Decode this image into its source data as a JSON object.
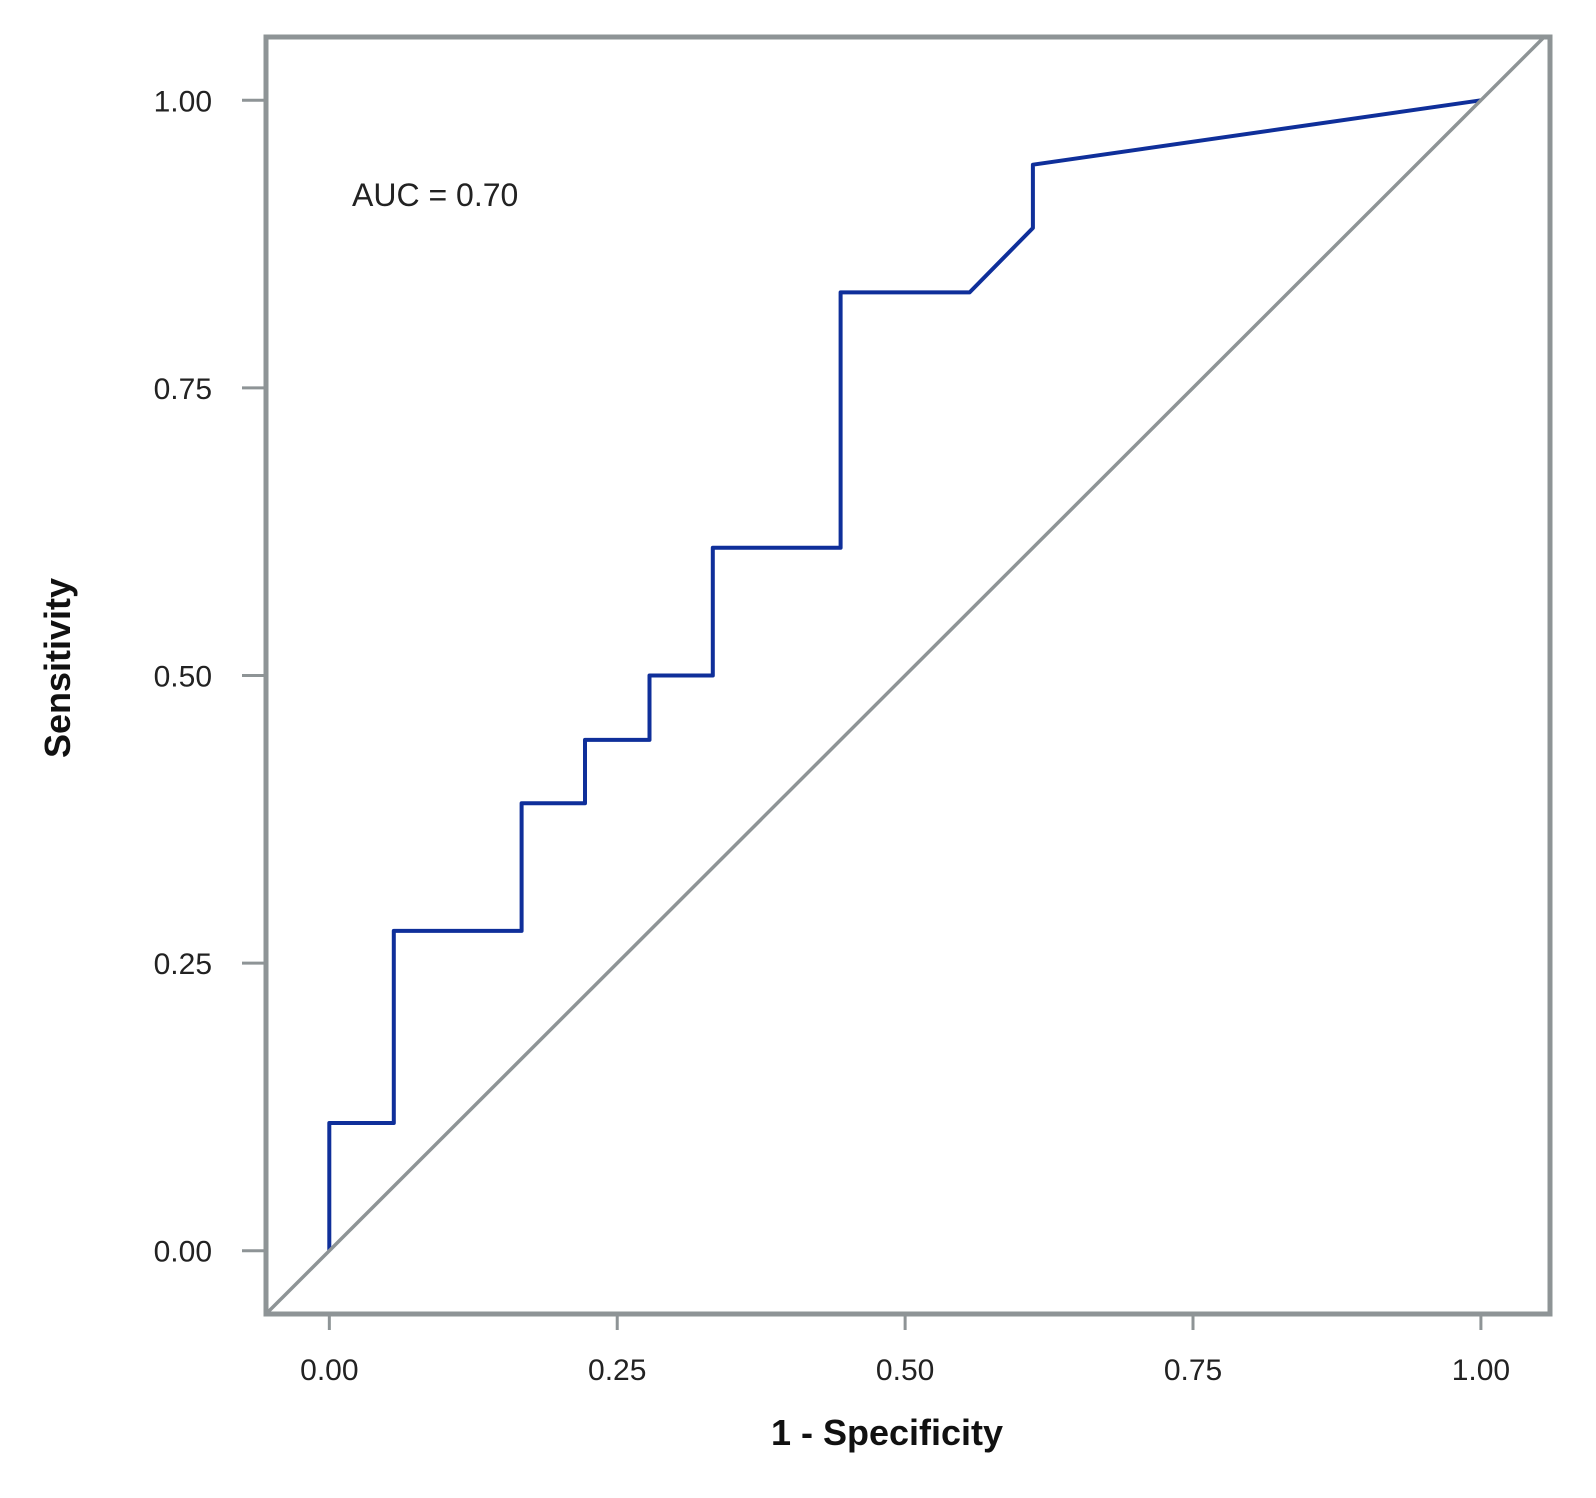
{
  "chart_data": {
    "type": "line",
    "title": "",
    "xlabel": "1 - Specificity",
    "ylabel": "Sensitivity",
    "xlim": [
      -0.055,
      1.06
    ],
    "ylim": [
      -0.055,
      1.055
    ],
    "xticks": [
      0,
      0.25,
      0.5,
      0.75,
      1
    ],
    "yticks": [
      0,
      0.25,
      0.5,
      0.75,
      1
    ],
    "xtick_labels": [
      "0.00",
      "0.25",
      "0.50",
      "0.75",
      "1.00"
    ],
    "ytick_labels": [
      "0.00",
      "0.25",
      "0.50",
      "0.75",
      "1.00"
    ],
    "grid": false,
    "annotation": "AUC = 0.70",
    "series": [
      {
        "name": "ROC curve",
        "color": "#0f2f9a",
        "points": [
          [
            0.0,
            0.0
          ],
          [
            0.0,
            0.111
          ],
          [
            0.056,
            0.111
          ],
          [
            0.056,
            0.278
          ],
          [
            0.167,
            0.278
          ],
          [
            0.167,
            0.389
          ],
          [
            0.222,
            0.389
          ],
          [
            0.222,
            0.444
          ],
          [
            0.278,
            0.444
          ],
          [
            0.278,
            0.5
          ],
          [
            0.333,
            0.5
          ],
          [
            0.333,
            0.611
          ],
          [
            0.444,
            0.611
          ],
          [
            0.444,
            0.833
          ],
          [
            0.556,
            0.833
          ],
          [
            0.611,
            0.889
          ],
          [
            0.611,
            0.944
          ],
          [
            1.0,
            1.0
          ]
        ]
      },
      {
        "name": "Reference line",
        "color": "#8e9496",
        "points": [
          [
            -0.055,
            -0.055
          ],
          [
            1.06,
            1.06
          ]
        ]
      }
    ],
    "frame_color": "#8e9496",
    "text_color": "#222222"
  }
}
